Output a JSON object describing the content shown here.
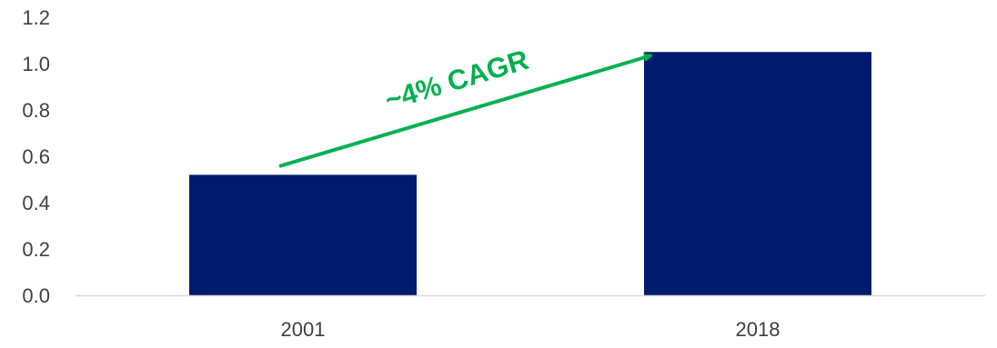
{
  "chart_data": {
    "type": "bar",
    "categories": [
      "2001",
      "2018"
    ],
    "values": [
      0.52,
      1.05
    ],
    "title": "",
    "xlabel": "",
    "ylabel": "",
    "ylim": [
      0,
      1.2
    ],
    "yticks": [
      "0.0",
      "0.2",
      "0.4",
      "0.6",
      "0.8",
      "1.0",
      "1.2"
    ],
    "grid": false,
    "legend": "none",
    "annotation": {
      "text": "~4% CAGR",
      "color": "#00B050"
    },
    "colors": {
      "bar": "#001A6E",
      "axis_line": "#D9D9D9",
      "tick_text": "#404040"
    }
  }
}
